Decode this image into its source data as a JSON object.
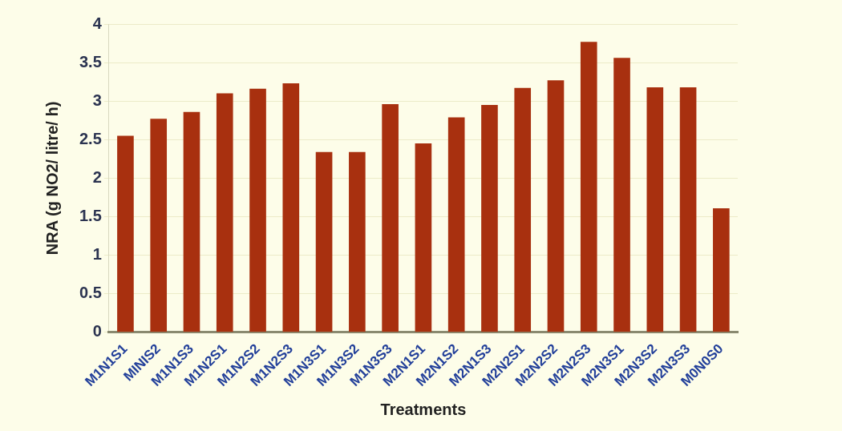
{
  "chart_data": {
    "type": "bar",
    "xlabel": "Treatments",
    "ylabel": "NRA (g NO2/ litre/ h)",
    "categories": [
      "M1N1S1",
      "MINIS2",
      "M1N1S3",
      "M1N2S1",
      "M1N2S2",
      "M1N2S3",
      "M1N3S1",
      "M1N3S2",
      "M1N3S3",
      "M2N1S1",
      "M2N1S2",
      "M2N1S3",
      "M2N2S1",
      "M2N2S2",
      "M2N2S3",
      "M2N3S1",
      "M2N3S2",
      "M2N3S3",
      "M0N0S0"
    ],
    "values": [
      2.55,
      2.77,
      2.86,
      3.1,
      3.16,
      3.23,
      2.34,
      2.34,
      2.96,
      2.45,
      2.79,
      2.95,
      3.17,
      3.27,
      3.77,
      3.56,
      3.18,
      3.18,
      1.61
    ],
    "color": "#a8300f",
    "ylim": [
      0,
      4
    ],
    "yticks": [
      0,
      0.5,
      1,
      1.5,
      2,
      2.5,
      3,
      3.5,
      4
    ],
    "grid": "y"
  }
}
